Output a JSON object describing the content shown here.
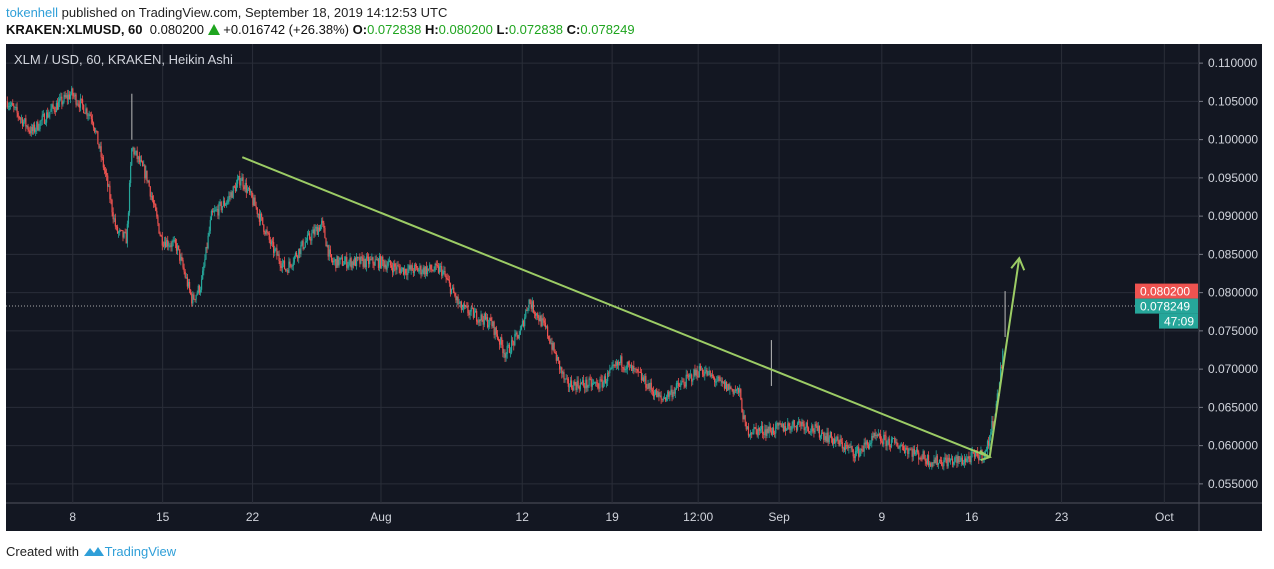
{
  "header": {
    "user": "tokenhell",
    "published": "published on TradingView.com, September 18, 2019 14:12:53 UTC",
    "symbol": "KRAKEN:XLMUSD, 60",
    "last": "0.080200",
    "change": "+0.016742 (+26.38%)",
    "o_label": "O:",
    "o": "0.072838",
    "h_label": "H:",
    "h": "0.080200",
    "l_label": "L:",
    "l": "0.072838",
    "c_label": "C:",
    "c": "0.078249"
  },
  "footer": {
    "created": "Created with",
    "brand": "TradingView"
  },
  "colors": {
    "bg": "#131722",
    "grid": "#2a2e39",
    "up": "#26a69a",
    "down": "#ef5350",
    "trend": "#9ccc65",
    "text": "#d1d4dc"
  },
  "chart_data": {
    "type": "candlestick",
    "title": "XLM / USD, 60, KRAKEN, Heikin Ashi",
    "xlabel": "",
    "ylabel": "",
    "x_unit": "days since Jul 8 2019",
    "xlim": [
      -5.2,
      87.7
    ],
    "ylim": [
      0.0525,
      0.1125
    ],
    "x_ticks": [
      {
        "d": 0,
        "label": "8"
      },
      {
        "d": 7,
        "label": "15"
      },
      {
        "d": 14,
        "label": "22"
      },
      {
        "d": 24,
        "label": "Aug"
      },
      {
        "d": 35,
        "label": "12"
      },
      {
        "d": 42,
        "label": "19"
      },
      {
        "d": 48.7,
        "label": "12:00"
      },
      {
        "d": 55,
        "label": "Sep"
      },
      {
        "d": 63,
        "label": "9"
      },
      {
        "d": 70,
        "label": "16"
      },
      {
        "d": 77,
        "label": "23"
      },
      {
        "d": 85,
        "label": "Oct"
      }
    ],
    "y_ticks": [
      "0.110000",
      "0.105000",
      "0.100000",
      "0.095000",
      "0.090000",
      "0.085000",
      "0.080000",
      "0.075000",
      "0.070000",
      "0.065000",
      "0.060000",
      "0.055000"
    ],
    "price_path": [
      [
        -5.1,
        0.105
      ],
      [
        -3.2,
        0.101
      ],
      [
        -1.6,
        0.104
      ],
      [
        -0.1,
        0.106
      ],
      [
        1.5,
        0.103
      ],
      [
        2.6,
        0.095
      ],
      [
        3.4,
        0.088
      ],
      [
        4.2,
        0.087
      ],
      [
        4.6,
        0.099
      ],
      [
        5.8,
        0.095
      ],
      [
        6.9,
        0.087
      ],
      [
        8.1,
        0.086
      ],
      [
        9.3,
        0.079
      ],
      [
        10.0,
        0.081
      ],
      [
        10.8,
        0.09
      ],
      [
        12.0,
        0.092
      ],
      [
        13.1,
        0.095
      ],
      [
        14.3,
        0.091
      ],
      [
        15.5,
        0.086
      ],
      [
        16.6,
        0.083
      ],
      [
        17.8,
        0.086
      ],
      [
        19.4,
        0.089
      ],
      [
        20.1,
        0.084
      ],
      [
        21.7,
        0.084
      ],
      [
        24.0,
        0.084
      ],
      [
        25.6,
        0.083
      ],
      [
        28.7,
        0.083
      ],
      [
        30.2,
        0.078
      ],
      [
        32.6,
        0.076
      ],
      [
        33.7,
        0.072
      ],
      [
        34.9,
        0.075
      ],
      [
        35.5,
        0.079
      ],
      [
        36.9,
        0.075
      ],
      [
        38.4,
        0.068
      ],
      [
        39.6,
        0.068
      ],
      [
        41.1,
        0.068
      ],
      [
        42.7,
        0.071
      ],
      [
        44.2,
        0.069
      ],
      [
        45.8,
        0.066
      ],
      [
        47.4,
        0.068
      ],
      [
        48.9,
        0.07
      ],
      [
        50.5,
        0.068
      ],
      [
        51.9,
        0.067
      ],
      [
        52.4,
        0.062
      ],
      [
        54.4,
        0.062
      ],
      [
        56.7,
        0.063
      ],
      [
        59.0,
        0.061
      ],
      [
        61.0,
        0.059
      ],
      [
        62.5,
        0.061
      ],
      [
        64.5,
        0.06
      ],
      [
        66.8,
        0.058
      ],
      [
        69.1,
        0.058
      ],
      [
        71.1,
        0.059
      ],
      [
        71.9,
        0.065
      ],
      [
        72.5,
        0.073
      ]
    ],
    "trendline": {
      "from": [
        13.2,
        0.0977
      ],
      "to": [
        71.4,
        0.0585
      ]
    },
    "arrow": {
      "from": [
        71.4,
        0.0585
      ],
      "to": [
        73.7,
        0.0845
      ]
    },
    "last_high_label": "0.080200",
    "last_price_label": "0.078249",
    "countdown": "47:09",
    "last_price": 0.078249,
    "last_high": 0.0802
  }
}
